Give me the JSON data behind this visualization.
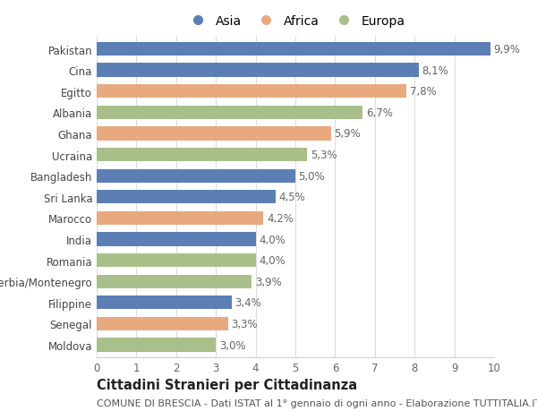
{
  "categories": [
    "Pakistan",
    "Cina",
    "Egitto",
    "Albania",
    "Ghana",
    "Ucraina",
    "Bangladesh",
    "Sri Lanka",
    "Marocco",
    "India",
    "Romania",
    "Serbia/Montenegro",
    "Filippine",
    "Senegal",
    "Moldova"
  ],
  "values": [
    9.9,
    8.1,
    7.8,
    6.7,
    5.9,
    5.3,
    5.0,
    4.5,
    4.2,
    4.0,
    4.0,
    3.9,
    3.4,
    3.3,
    3.0
  ],
  "labels": [
    "9,9%",
    "8,1%",
    "7,8%",
    "6,7%",
    "5,9%",
    "5,3%",
    "5,0%",
    "4,5%",
    "4,2%",
    "4,0%",
    "4,0%",
    "3,9%",
    "3,4%",
    "3,3%",
    "3,0%"
  ],
  "colors": [
    "#5b7fb5",
    "#5b7fb5",
    "#e8a97e",
    "#a8bf8a",
    "#e8a97e",
    "#a8bf8a",
    "#5b7fb5",
    "#5b7fb5",
    "#e8a97e",
    "#5b7fb5",
    "#a8bf8a",
    "#a8bf8a",
    "#5b7fb5",
    "#e8a97e",
    "#a8bf8a"
  ],
  "continent": [
    "Asia",
    "Asia",
    "Africa",
    "Europa",
    "Africa",
    "Europa",
    "Asia",
    "Asia",
    "Africa",
    "Asia",
    "Europa",
    "Europa",
    "Asia",
    "Africa",
    "Europa"
  ],
  "legend_labels": [
    "Asia",
    "Africa",
    "Europa"
  ],
  "legend_colors": [
    "#5b7fb5",
    "#e8a97e",
    "#a8bf8a"
  ],
  "title": "Cittadini Stranieri per Cittadinanza",
  "subtitle": "COMUNE DI BRESCIA - Dati ISTAT al 1° gennaio di ogni anno - Elaborazione TUTTITALIA.IT",
  "xlim": [
    0,
    10
  ],
  "xticks": [
    0,
    1,
    2,
    3,
    4,
    5,
    6,
    7,
    8,
    9,
    10
  ],
  "background_color": "#ffffff",
  "bar_height": 0.65,
  "grid_color": "#dddddd",
  "label_fontsize": 8.5,
  "tick_fontsize": 8.5,
  "title_fontsize": 10.5,
  "subtitle_fontsize": 8,
  "legend_fontsize": 10
}
